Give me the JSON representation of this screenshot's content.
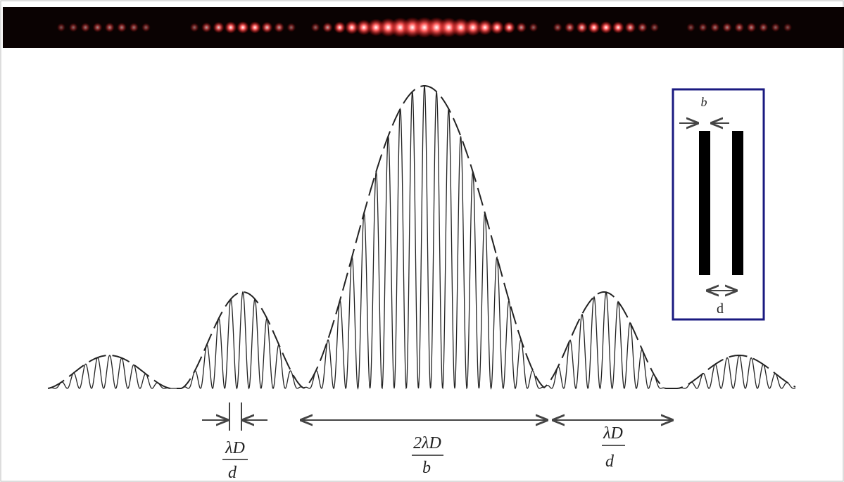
{
  "inset": {
    "slit_width_label": "b",
    "slit_spacing_label": "d"
  },
  "annotations": [
    {
      "numerator": "λD",
      "denominator": "d"
    },
    {
      "numerator": "2λD",
      "denominator": "b"
    },
    {
      "numerator": "λD",
      "denominator": "d"
    }
  ]
}
